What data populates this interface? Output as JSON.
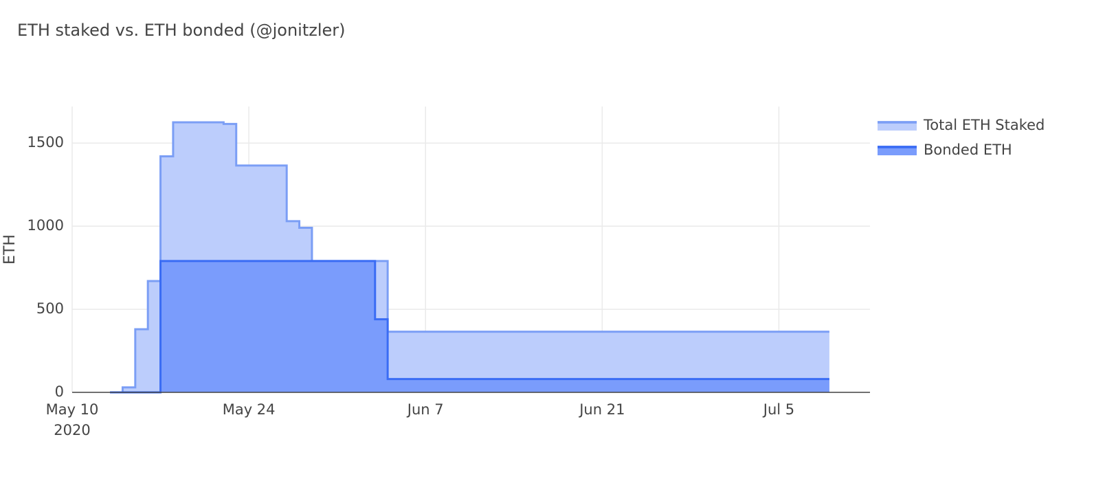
{
  "chart_data": {
    "type": "step-area",
    "title": "ETH staked vs. ETH bonded (@jonitzler)",
    "y_label": "ETH",
    "xlim": [
      "2020-05-10",
      "2020-07-12"
    ],
    "xticks": [
      {
        "value": "2020-05-10",
        "label": "May 10\n2020"
      },
      {
        "value": "2020-05-24",
        "label": "May 24"
      },
      {
        "value": "2020-06-07",
        "label": "Jun 7"
      },
      {
        "value": "2020-06-21",
        "label": "Jun 21"
      },
      {
        "value": "2020-07-05",
        "label": "Jul 5"
      }
    ],
    "ylim": [
      0,
      1720
    ],
    "yticks": [
      0,
      500,
      1000,
      1500
    ],
    "grid": true,
    "legend": "top-right",
    "series": [
      {
        "name": "Total ETH Staked",
        "color": "#7b9ef5",
        "fill": "#bccdfc",
        "x": [
          "2020-05-13",
          "2020-05-14",
          "2020-05-15",
          "2020-05-16",
          "2020-05-17",
          "2020-05-18",
          "2020-05-22",
          "2020-05-23",
          "2020-05-27",
          "2020-05-28",
          "2020-05-29",
          "2020-06-04",
          "2020-07-09"
        ],
        "values": [
          0,
          30,
          380,
          670,
          1420,
          1625,
          1615,
          1365,
          1030,
          990,
          790,
          365,
          365
        ]
      },
      {
        "name": "Bonded ETH",
        "color": "#3a6cf4",
        "fill": "#7a9cfc",
        "x": [
          "2020-05-13",
          "2020-05-17",
          "2020-06-03",
          "2020-06-04",
          "2020-07-09"
        ],
        "values": [
          0,
          790,
          440,
          80,
          80
        ]
      }
    ]
  }
}
